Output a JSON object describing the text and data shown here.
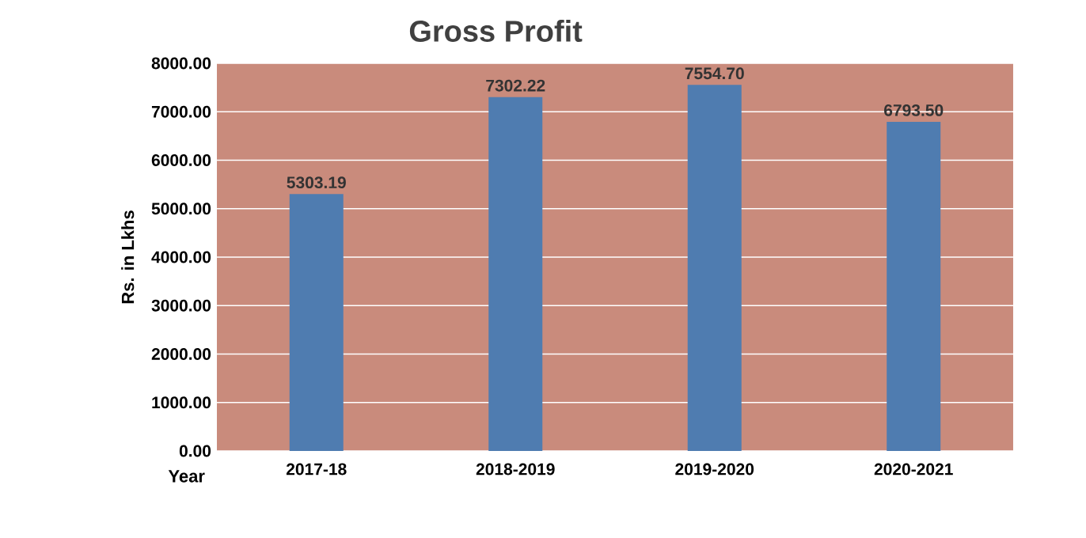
{
  "chart_data": {
    "type": "bar",
    "title": "Gross Profit",
    "xlabel": "Year",
    "ylabel": "Rs. in Lkhs",
    "categories": [
      "2017-18",
      "2018-2019",
      "2019-2020",
      "2020-2021"
    ],
    "values": [
      5303.19,
      7302.22,
      7554.7,
      6793.5
    ],
    "color": "#4f7cb0",
    "value_labels": [
      "5303.19",
      "7302.22",
      "7554.70",
      "6793.50"
    ],
    "ylim": [
      0,
      8000
    ],
    "yticks": [
      {
        "value": 0,
        "label": "0.00"
      },
      {
        "value": 1000,
        "label": "1000.00"
      },
      {
        "value": 2000,
        "label": "2000.00"
      },
      {
        "value": 3000,
        "label": "3000.00"
      },
      {
        "value": 4000,
        "label": "4000.00"
      },
      {
        "value": 5000,
        "label": "5000.00"
      },
      {
        "value": 6000,
        "label": "6000.00"
      },
      {
        "value": 7000,
        "label": "7000.00"
      },
      {
        "value": 8000,
        "label": "8000.00"
      }
    ],
    "grid": "y"
  }
}
